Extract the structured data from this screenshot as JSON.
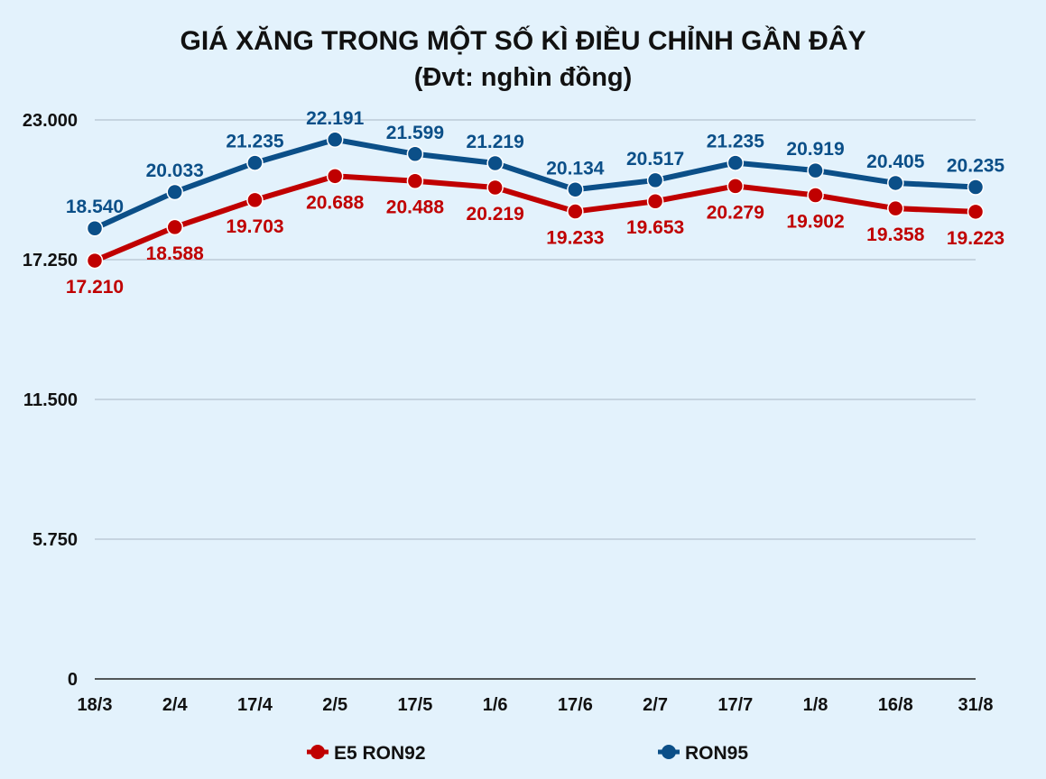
{
  "chart_data": {
    "type": "line",
    "title": "GIÁ XĂNG TRONG MỘT SỐ KÌ ĐIỀU CHỈNH GẦN ĐÂY",
    "subtitle": "(Đvt: nghìn đồng)",
    "categories": [
      "18/3",
      "2/4",
      "17/4",
      "2/5",
      "17/5",
      "1/6",
      "17/6",
      "2/7",
      "17/7",
      "1/8",
      "16/8",
      "31/8"
    ],
    "y_ticks": [
      0,
      5750,
      11500,
      17250,
      23000
    ],
    "y_tick_labels": [
      "0",
      "5.750",
      "11.500",
      "17.250",
      "23.000"
    ],
    "ylim": [
      0,
      23000
    ],
    "grid": true,
    "legend_position": "bottom",
    "series": [
      {
        "name": "E5 RON92",
        "color": "#c00000",
        "values": [
          17210,
          18588,
          19703,
          20688,
          20488,
          20219,
          19233,
          19653,
          20279,
          19902,
          19358,
          19223
        ],
        "labels": [
          "17.210",
          "18.588",
          "19.703",
          "20.688",
          "20.488",
          "20.219",
          "19.233",
          "19.653",
          "20.279",
          "19.902",
          "19.358",
          "19.223"
        ]
      },
      {
        "name": "RON95",
        "color": "#0b4f88",
        "values": [
          18540,
          20033,
          21235,
          22191,
          21599,
          21219,
          20134,
          20517,
          21235,
          20919,
          20405,
          20235
        ],
        "labels": [
          "18.540",
          "20.033",
          "21.235",
          "22.191",
          "21.599",
          "21.219",
          "20.134",
          "20.517",
          "21.235",
          "20.919",
          "20.405",
          "20.235"
        ]
      }
    ]
  }
}
